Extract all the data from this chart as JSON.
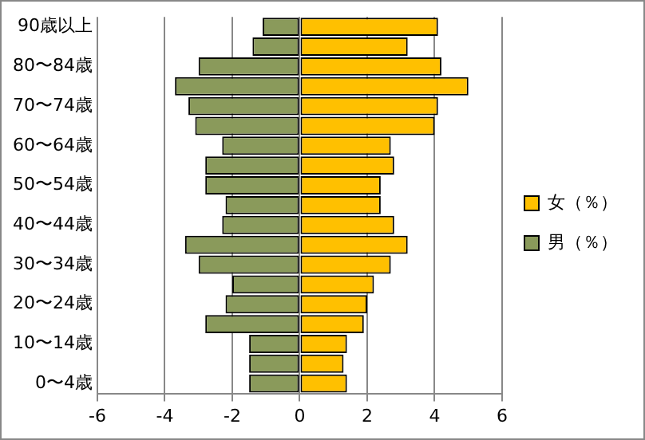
{
  "chart_data": {
    "type": "bar",
    "orientation": "horizontal",
    "stacked": true,
    "categories": [
      "90歳以上",
      null,
      "80〜84歳",
      null,
      "70〜74歳",
      null,
      "60〜64歳",
      null,
      "50〜54歳",
      null,
      "40〜44歳",
      null,
      "30〜34歳",
      null,
      "20〜24歳",
      null,
      "10〜14歳",
      null,
      "0〜4歳"
    ],
    "series": [
      {
        "name": "女（％）",
        "color": "#ffc000",
        "values": [
          4.1,
          3.2,
          4.2,
          5.0,
          4.1,
          4.0,
          2.7,
          2.8,
          2.4,
          2.4,
          2.8,
          3.2,
          2.7,
          2.2,
          2.0,
          1.9,
          1.4,
          1.3,
          1.4
        ]
      },
      {
        "name": "男（％）",
        "color": "#8a9a5b",
        "values": [
          -1.1,
          -1.4,
          -3.0,
          -3.7,
          -3.3,
          -3.1,
          -2.3,
          -2.8,
          -2.8,
          -2.2,
          -2.3,
          -3.4,
          -3.0,
          -2.0,
          -2.2,
          -2.8,
          -1.5,
          -1.5,
          -1.5
        ]
      }
    ],
    "xlim": [
      -6,
      6
    ],
    "xticks": [
      -6,
      -4,
      -2,
      0,
      2,
      4,
      6
    ],
    "grid": "x",
    "legend": "right"
  }
}
